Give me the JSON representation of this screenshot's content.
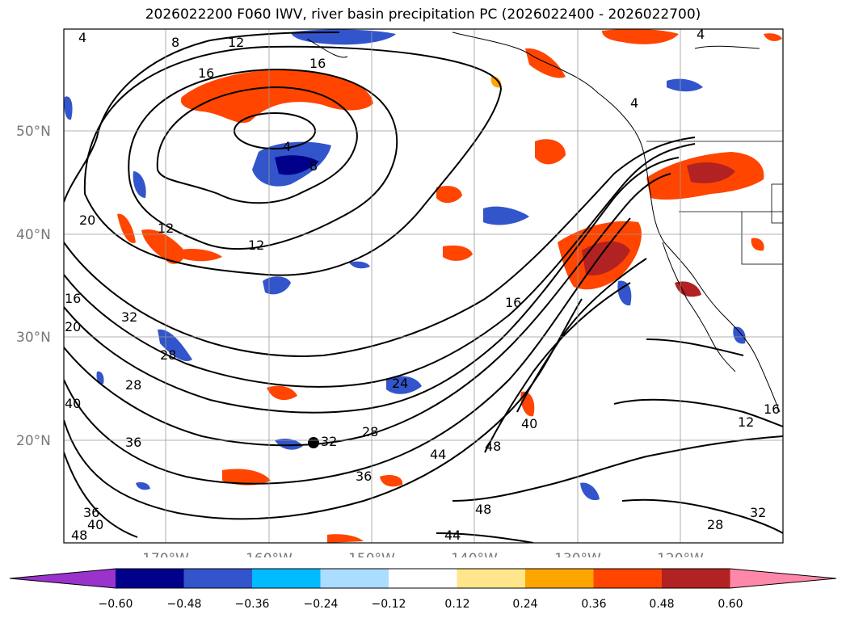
{
  "title": "2026022200 F060 IWV, river basin precipitation PC (2026022400 - 2026022700)",
  "map": {
    "lat_labels": [
      "50°N",
      "40°N",
      "30°N",
      "20°N"
    ],
    "lon_labels": [
      "170°W",
      "160°W",
      "150°W",
      "140°W",
      "130°W",
      "120°W"
    ],
    "grid": true,
    "contour_labels": [
      "4",
      "8",
      "12",
      "16",
      "4",
      "8",
      "16",
      "20",
      "12",
      "12",
      "16",
      "32",
      "28",
      "28",
      "36",
      "24",
      "32",
      "28",
      "44",
      "48",
      "40",
      "48",
      "44",
      "12",
      "16",
      "28",
      "32",
      "36",
      "20",
      "16",
      "40",
      "36",
      "40",
      "48",
      "4",
      "4"
    ]
  },
  "colorbar": {
    "ticks": [
      "−0.60",
      "−0.48",
      "−0.36",
      "−0.24",
      "−0.12",
      "0.12",
      "0.24",
      "0.36",
      "0.48",
      "0.60"
    ],
    "colors": [
      "#9933cc",
      "#00008b",
      "#3355cc",
      "#00bbff",
      "#aaddff",
      "#ffffff",
      "#ffe68a",
      "#ffa500",
      "#ff4500",
      "#b22222",
      "#ff88aa"
    ]
  }
}
